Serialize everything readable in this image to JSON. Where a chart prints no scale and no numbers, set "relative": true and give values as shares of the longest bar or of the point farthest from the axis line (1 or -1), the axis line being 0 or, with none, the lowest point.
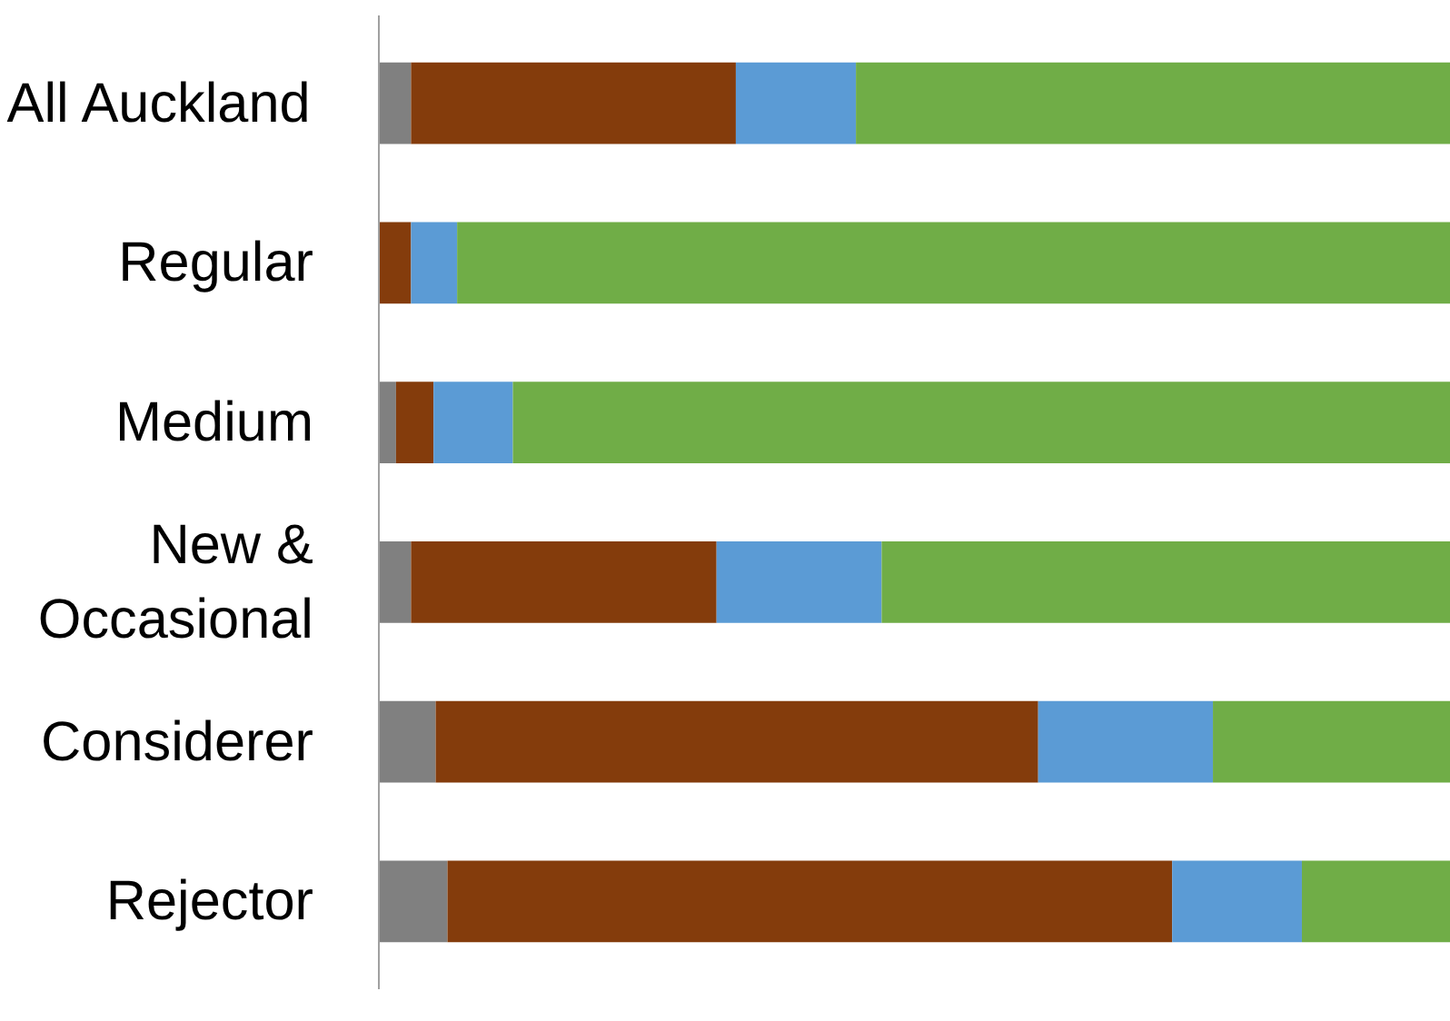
{
  "chart_data": {
    "type": "bar",
    "orientation": "horizontal",
    "stacked": true,
    "relative": true,
    "categories": [
      "All Auckland",
      "Regular",
      "Medium",
      "New & Occasional",
      "Considerer",
      "Rejector"
    ],
    "series": [
      {
        "color": "#808080",
        "values": [
          0.03,
          0,
          0.016,
          0.03,
          0.053,
          0.064
        ]
      },
      {
        "color": "#843c0c",
        "values": [
          0.303,
          0.03,
          0.035,
          0.285,
          0.562,
          0.676
        ]
      },
      {
        "color": "#5b9bd5",
        "values": [
          0.112,
          0.043,
          0.074,
          0.154,
          0.163,
          0.121
        ]
      },
      {
        "color": "#70ad47",
        "values": [
          0.555,
          0.927,
          0.875,
          0.531,
          0.222,
          0.139
        ]
      }
    ]
  }
}
